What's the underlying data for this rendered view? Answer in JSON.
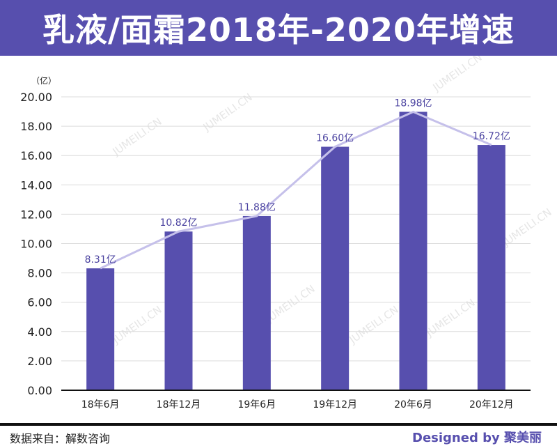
{
  "title": "乳液/面霜2018年-2020年增速",
  "watermark": "JUMEILI.CN",
  "footer": {
    "source": "数据来自：解数咨询",
    "credit": "Designed by 聚美丽"
  },
  "colors": {
    "brand": "#574fae",
    "bar": "#574fae",
    "line": "#c5c0ea",
    "label": "#4b43a0"
  },
  "chart_data": {
    "type": "bar",
    "title": "乳液/面霜2018年-2020年增速",
    "ylabel": "（亿）",
    "xlabel": "",
    "ylim": [
      0,
      20
    ],
    "yticks": [
      "0.00",
      "2.00",
      "4.00",
      "6.00",
      "8.00",
      "10.00",
      "12.00",
      "14.00",
      "16.00",
      "18.00",
      "20.00"
    ],
    "categories": [
      "18年6月",
      "18年12月",
      "19年6月",
      "19年12月",
      "20年6月",
      "20年12月"
    ],
    "values": [
      8.31,
      10.82,
      11.88,
      16.6,
      18.98,
      16.72
    ],
    "data_labels": [
      "8.31亿",
      "10.82亿",
      "11.88亿",
      "16.60亿",
      "18.98亿",
      "16.72亿"
    ],
    "overlay_line": true,
    "grid": true
  }
}
